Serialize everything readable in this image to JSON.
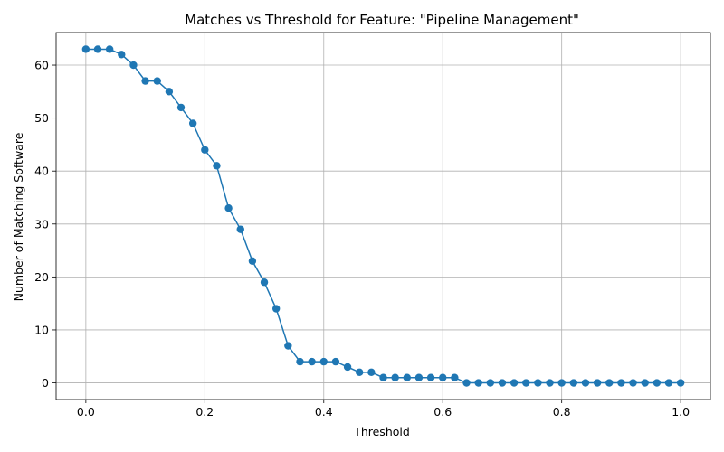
{
  "chart_data": {
    "type": "line",
    "title": "Matches vs Threshold for Feature: \"Pipeline Management\"",
    "xlabel": "Threshold",
    "ylabel": "Number of Matching Software",
    "xlim": [
      -0.05,
      1.05
    ],
    "ylim": [
      -3.15,
      66.15
    ],
    "xticks": [
      0.0,
      0.2,
      0.4,
      0.6,
      0.8,
      1.0
    ],
    "xtick_labels": [
      "0.0",
      "0.2",
      "0.4",
      "0.6",
      "0.8",
      "1.0"
    ],
    "yticks": [
      0,
      10,
      20,
      30,
      40,
      50,
      60
    ],
    "ytick_labels": [
      "0",
      "10",
      "20",
      "30",
      "40",
      "50",
      "60"
    ],
    "grid": true,
    "legend": "none",
    "color": "#1f77b4",
    "marker": "circle",
    "series": [
      {
        "x": [
          0.0,
          0.02,
          0.04,
          0.06,
          0.08,
          0.1,
          0.12,
          0.14,
          0.16,
          0.18,
          0.2,
          0.22,
          0.24,
          0.26,
          0.28,
          0.3,
          0.32,
          0.34,
          0.36,
          0.38,
          0.4,
          0.42,
          0.44,
          0.46,
          0.48,
          0.5,
          0.52,
          0.54,
          0.56,
          0.58,
          0.6,
          0.62,
          0.64,
          0.66,
          0.68,
          0.7,
          0.72,
          0.74,
          0.76,
          0.78,
          0.8,
          0.82,
          0.84,
          0.86,
          0.88,
          0.9,
          0.92,
          0.94,
          0.96,
          0.98,
          1.0
        ],
        "values": [
          63,
          63,
          63,
          62,
          60,
          57,
          57,
          55,
          52,
          49,
          44,
          41,
          33,
          29,
          23,
          19,
          14,
          7,
          4,
          4,
          4,
          4,
          3,
          2,
          2,
          1,
          1,
          1,
          1,
          1,
          1,
          1,
          0,
          0,
          0,
          0,
          0,
          0,
          0,
          0,
          0,
          0,
          0,
          0,
          0,
          0,
          0,
          0,
          0,
          0,
          0
        ]
      }
    ]
  }
}
